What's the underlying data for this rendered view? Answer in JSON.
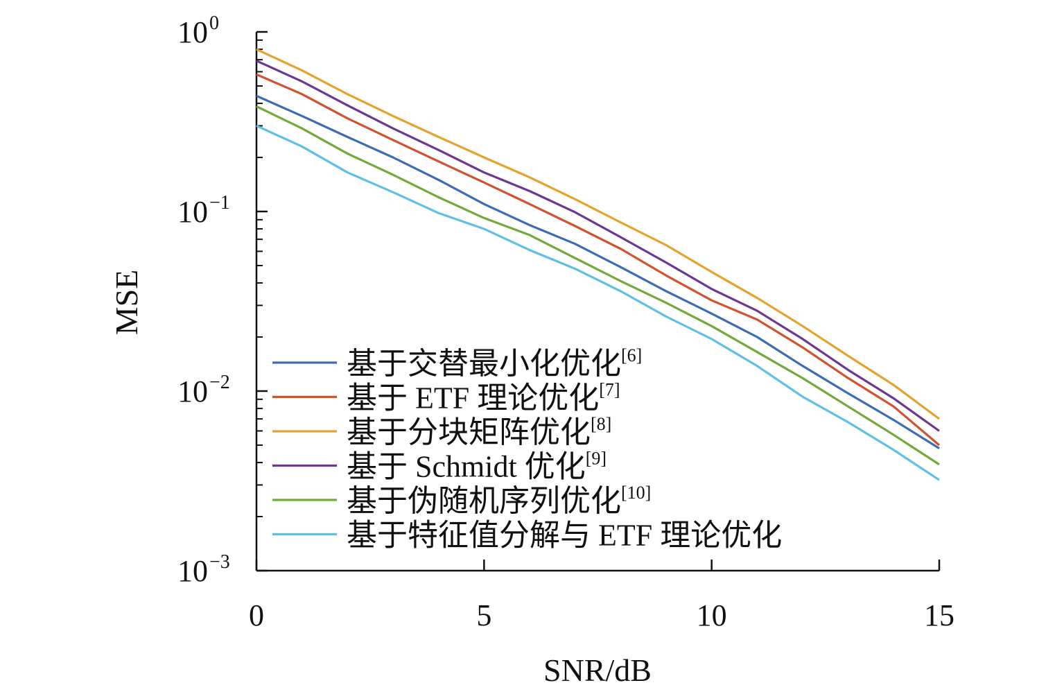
{
  "chart_data": {
    "type": "line",
    "xlabel": "SNR/dB",
    "ylabel": "MSE",
    "xlim": [
      0,
      15
    ],
    "ylim": [
      0.001,
      1
    ],
    "y_scale": "log",
    "grid": false,
    "legend_placement": "bottom-left",
    "x_ticks": [
      "0",
      "5",
      "10",
      "15"
    ],
    "y_ticks": [
      {
        "base": "10",
        "exp": "0"
      },
      {
        "base": "10",
        "exp": "−1"
      },
      {
        "base": "10",
        "exp": "−2"
      },
      {
        "base": "10",
        "exp": "−3"
      }
    ],
    "x": [
      0,
      1,
      2,
      3,
      4,
      5,
      6,
      7,
      8,
      9,
      10,
      11,
      12,
      13,
      14,
      15
    ],
    "series": [
      {
        "name": "基于交替最小化优化",
        "ref": "[6]",
        "color": "#3a6db5",
        "values": [
          0.44,
          0.34,
          0.26,
          0.2,
          0.15,
          0.11,
          0.084,
          0.066,
          0.049,
          0.036,
          0.027,
          0.02,
          0.0138,
          0.0097,
          0.0069,
          0.0048
        ]
      },
      {
        "name": "基于 ETF 理论优化",
        "ref": "[7]",
        "color": "#d2522e",
        "values": [
          0.58,
          0.45,
          0.33,
          0.25,
          0.19,
          0.145,
          0.11,
          0.083,
          0.062,
          0.044,
          0.032,
          0.025,
          0.0175,
          0.0118,
          0.0082,
          0.005
        ]
      },
      {
        "name": "基于分块矩阵优化",
        "ref": "[8]",
        "color": "#e4a32c",
        "values": [
          0.8,
          0.61,
          0.45,
          0.34,
          0.26,
          0.2,
          0.155,
          0.117,
          0.087,
          0.065,
          0.046,
          0.033,
          0.023,
          0.0157,
          0.0108,
          0.007
        ]
      },
      {
        "name": "基于 Schmidt 优化",
        "ref": "[9]",
        "color": "#6f3594",
        "values": [
          0.69,
          0.53,
          0.39,
          0.29,
          0.22,
          0.165,
          0.13,
          0.099,
          0.072,
          0.052,
          0.037,
          0.028,
          0.0195,
          0.0131,
          0.0091,
          0.006
        ]
      },
      {
        "name": "基于伪随机序列优化",
        "ref": "[10]",
        "color": "#72aa3a",
        "values": [
          0.385,
          0.29,
          0.21,
          0.16,
          0.12,
          0.092,
          0.074,
          0.055,
          0.041,
          0.031,
          0.023,
          0.0165,
          0.0118,
          0.0082,
          0.0057,
          0.0039
        ]
      },
      {
        "name": "基于特征值分解与 ETF 理论优化",
        "ref": "",
        "color": "#5fbfe5",
        "values": [
          0.3,
          0.23,
          0.165,
          0.128,
          0.098,
          0.08,
          0.061,
          0.048,
          0.036,
          0.026,
          0.0195,
          0.0138,
          0.0093,
          0.0067,
          0.0047,
          0.0032
        ]
      }
    ]
  }
}
